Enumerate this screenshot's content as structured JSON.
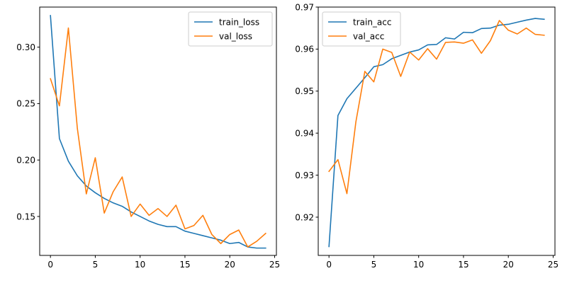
{
  "colors": {
    "series_1": "#1f77b4",
    "series_2": "#ff7f0e"
  },
  "chart_data": [
    {
      "type": "line",
      "title": "",
      "xlabel": "",
      "ylabel": "",
      "xlim": [
        -1.2,
        25.2
      ],
      "ylim": [
        0.1155,
        0.3355
      ],
      "xticks": [
        0,
        5,
        10,
        15,
        20,
        25
      ],
      "yticks": [
        0.15,
        0.2,
        0.25,
        0.3
      ],
      "ytick_labels": [
        "0.15",
        "0.20",
        "0.25",
        "0.30"
      ],
      "legend": "top-right",
      "grid": false,
      "x": [
        0,
        1,
        2,
        3,
        4,
        5,
        6,
        7,
        8,
        9,
        10,
        11,
        12,
        13,
        14,
        15,
        16,
        17,
        18,
        19,
        20,
        21,
        22,
        23,
        24
      ],
      "series": [
        {
          "name": "train_loss",
          "color": "#1f77b4",
          "values": [
            0.328,
            0.219,
            0.199,
            0.186,
            0.177,
            0.171,
            0.166,
            0.162,
            0.159,
            0.154,
            0.15,
            0.146,
            0.143,
            0.141,
            0.141,
            0.137,
            0.135,
            0.133,
            0.131,
            0.129,
            0.126,
            0.127,
            0.123,
            0.122,
            0.122
          ]
        },
        {
          "name": "val_loss",
          "color": "#ff7f0e",
          "values": [
            0.272,
            0.248,
            0.317,
            0.228,
            0.17,
            0.202,
            0.153,
            0.172,
            0.185,
            0.15,
            0.161,
            0.151,
            0.157,
            0.15,
            0.16,
            0.139,
            0.142,
            0.151,
            0.134,
            0.126,
            0.134,
            0.138,
            0.123,
            0.128,
            0.135
          ]
        }
      ]
    },
    {
      "type": "line",
      "title": "",
      "xlabel": "",
      "ylabel": "",
      "xlim": [
        -1.2,
        25.2
      ],
      "ylim": [
        0.9109,
        0.97
      ],
      "xticks": [
        0,
        5,
        10,
        15,
        20,
        25
      ],
      "yticks": [
        0.92,
        0.93,
        0.94,
        0.95,
        0.96,
        0.97
      ],
      "ytick_labels": [
        "0.92",
        "0.93",
        "0.94",
        "0.95",
        "0.96",
        "0.97"
      ],
      "legend": "top-left",
      "grid": false,
      "x": [
        0,
        1,
        2,
        3,
        4,
        5,
        6,
        7,
        8,
        9,
        10,
        11,
        12,
        13,
        14,
        15,
        16,
        17,
        18,
        19,
        20,
        21,
        22,
        23,
        24
      ],
      "series": [
        {
          "name": "train_acc",
          "color": "#1f77b4",
          "values": [
            0.913,
            0.9442,
            0.9482,
            0.9507,
            0.9532,
            0.9558,
            0.9563,
            0.9577,
            0.9585,
            0.9593,
            0.9598,
            0.961,
            0.9611,
            0.9627,
            0.9624,
            0.964,
            0.9639,
            0.9649,
            0.965,
            0.9657,
            0.9659,
            0.9664,
            0.9669,
            0.9673,
            0.9671
          ]
        },
        {
          "name": "val_acc",
          "color": "#ff7f0e",
          "values": [
            0.9309,
            0.9337,
            0.9256,
            0.9427,
            0.9547,
            0.9522,
            0.96,
            0.9592,
            0.9535,
            0.9593,
            0.9574,
            0.9601,
            0.9576,
            0.9616,
            0.9617,
            0.9614,
            0.9622,
            0.959,
            0.962,
            0.9668,
            0.9645,
            0.9636,
            0.965,
            0.9635,
            0.9633
          ]
        }
      ]
    }
  ]
}
